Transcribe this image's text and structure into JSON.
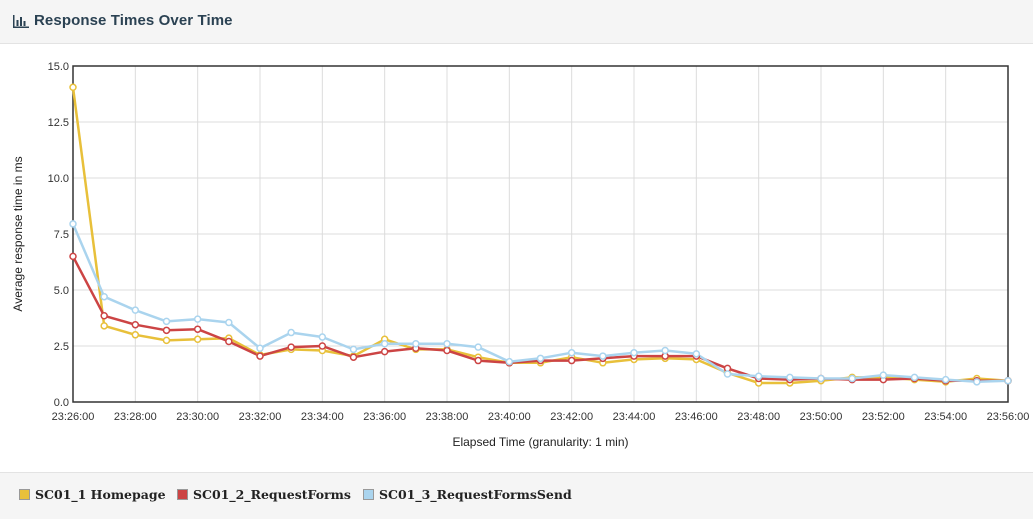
{
  "panel": {
    "title": "Response Times Over Time",
    "icon": "bar-chart-icon"
  },
  "chart_data": {
    "type": "line",
    "xlabel": "Elapsed Time (granularity: 1 min)",
    "ylabel": "Average response time in ms",
    "ylim": [
      0,
      15
    ],
    "yticks": [
      "0.0",
      "2.5",
      "5.0",
      "7.5",
      "10.0",
      "12.5",
      "15.0"
    ],
    "x": [
      "23:26:00",
      "23:27:00",
      "23:28:00",
      "23:29:00",
      "23:30:00",
      "23:31:00",
      "23:32:00",
      "23:33:00",
      "23:34:00",
      "23:35:00",
      "23:36:00",
      "23:37:00",
      "23:38:00",
      "23:39:00",
      "23:40:00",
      "23:41:00",
      "23:42:00",
      "23:43:00",
      "23:44:00",
      "23:45:00",
      "23:46:00",
      "23:47:00",
      "23:48:00",
      "23:49:00",
      "23:50:00",
      "23:51:00",
      "23:52:00",
      "23:53:00",
      "23:54:00",
      "23:55:00",
      "23:56:00"
    ],
    "xticks": [
      "23:26:00",
      "23:28:00",
      "23:30:00",
      "23:32:00",
      "23:34:00",
      "23:36:00",
      "23:38:00",
      "23:40:00",
      "23:42:00",
      "23:44:00",
      "23:46:00",
      "23:48:00",
      "23:50:00",
      "23:52:00",
      "23:54:00",
      "23:56:00"
    ],
    "grid": true,
    "legend_position": "bottom",
    "series": [
      {
        "name": "SC01_1 Homepage",
        "color": "#e8c03a",
        "values": [
          14.05,
          3.4,
          3.0,
          2.75,
          2.8,
          2.85,
          2.1,
          2.35,
          2.3,
          2.05,
          2.8,
          2.35,
          2.35,
          2.0,
          1.75,
          1.75,
          2.0,
          1.75,
          1.9,
          1.95,
          1.9,
          1.3,
          0.85,
          0.85,
          0.95,
          1.1,
          1.1,
          1.0,
          0.9,
          1.05,
          0.95
        ]
      },
      {
        "name": "SC01_2_RequestForms",
        "color": "#cc4444",
        "values": [
          6.5,
          3.85,
          3.45,
          3.2,
          3.25,
          2.7,
          2.05,
          2.45,
          2.5,
          2.0,
          2.25,
          2.4,
          2.3,
          1.85,
          1.75,
          1.85,
          1.85,
          1.95,
          2.05,
          2.05,
          2.05,
          1.5,
          1.05,
          1.0,
          1.05,
          1.0,
          1.0,
          1.05,
          0.95,
          0.95,
          0.95
        ]
      },
      {
        "name": "SC01_3_RequestFormsSend",
        "color": "#aad4ee",
        "values": [
          7.95,
          4.7,
          4.1,
          3.6,
          3.7,
          3.55,
          2.4,
          3.1,
          2.9,
          2.35,
          2.6,
          2.6,
          2.6,
          2.45,
          1.8,
          1.95,
          2.2,
          2.05,
          2.2,
          2.3,
          2.15,
          1.25,
          1.15,
          1.1,
          1.05,
          1.05,
          1.2,
          1.1,
          1.0,
          0.9,
          0.95
        ]
      }
    ]
  }
}
